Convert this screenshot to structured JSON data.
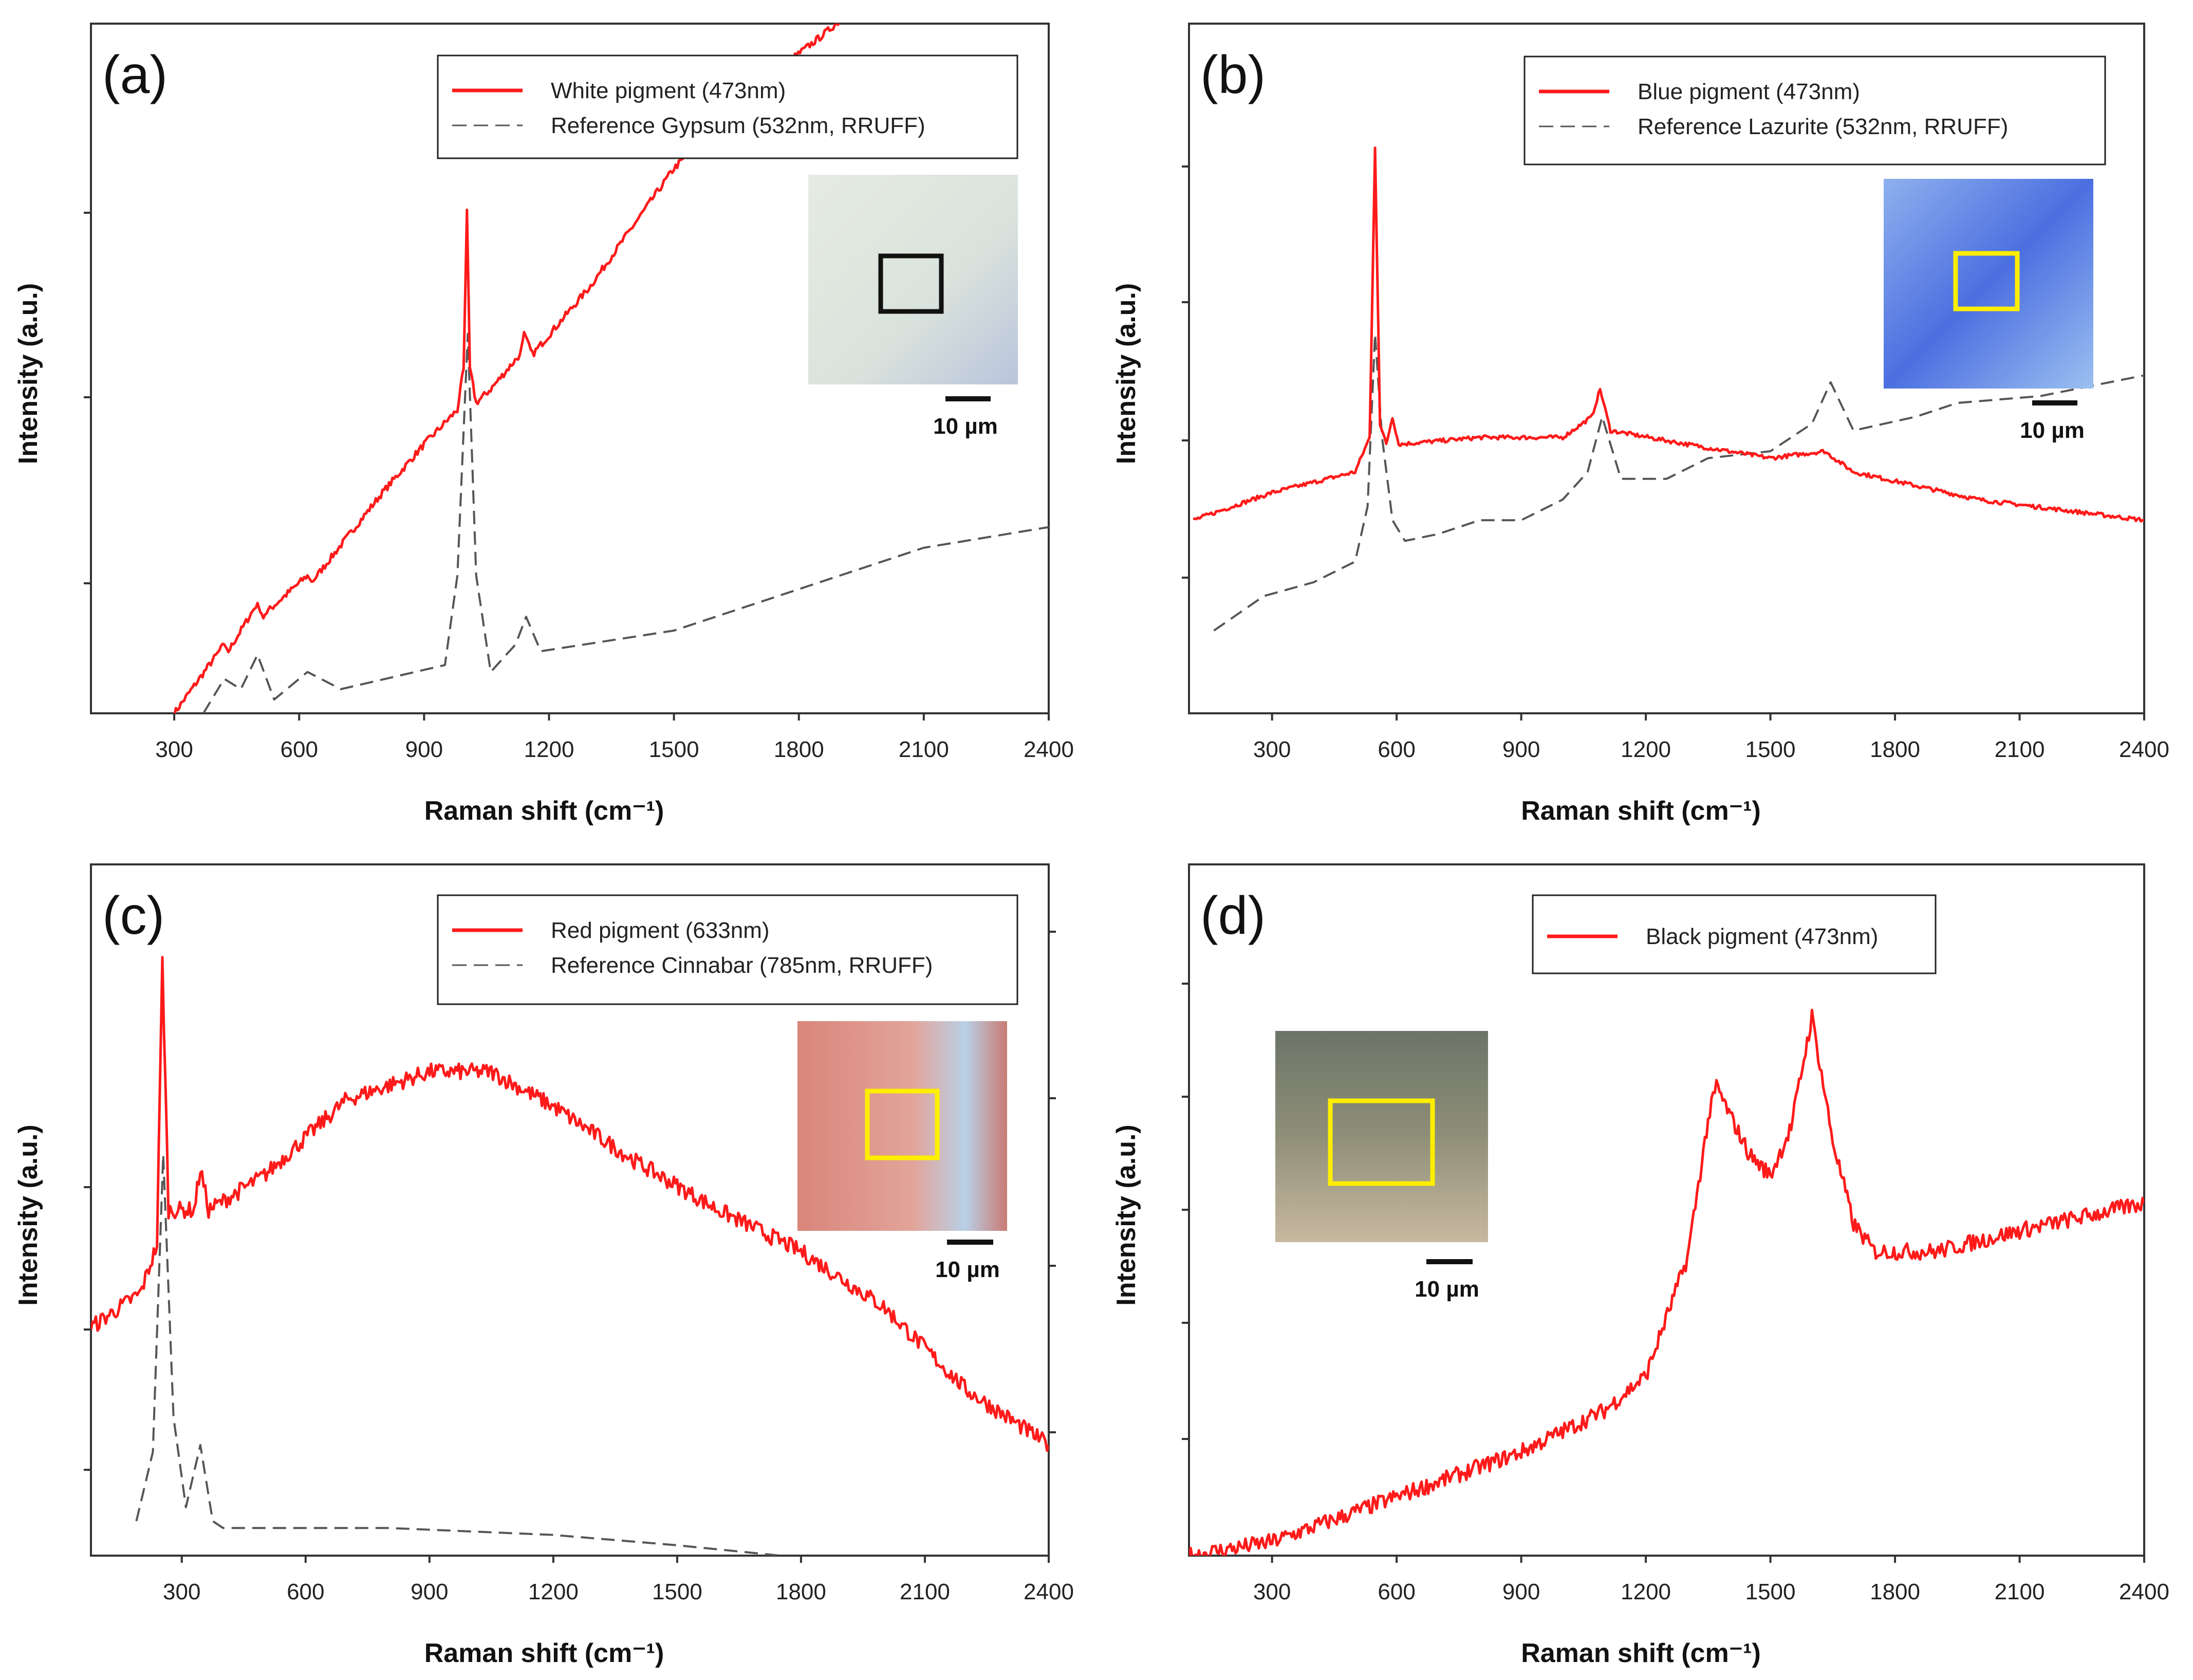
{
  "chart_data": [
    {
      "type": "line",
      "panel_label": "(a)",
      "xlabel": "Raman shift (cm⁻¹)",
      "ylabel": "Intensity (a.u.)",
      "xlim": [
        100,
        2400
      ],
      "ylim": [
        0,
        1
      ],
      "xticks": [
        300,
        600,
        900,
        1200,
        1500,
        1800,
        2100,
        2400
      ],
      "legend_position": "top-right",
      "inset": {
        "scale_label": "10 µm",
        "box_color": "#111111",
        "theme": "white"
      },
      "series": [
        {
          "name": "White pigment (473nm)",
          "color": "#ff1a1a",
          "style": "solid",
          "points": [
            [
              300,
              0
            ],
            [
              360,
              0.05
            ],
            [
              420,
              0.1
            ],
            [
              430,
              0.09
            ],
            [
              500,
              0.16
            ],
            [
              510,
              0.14
            ],
            [
              620,
              0.2
            ],
            [
              630,
              0.19
            ],
            [
              800,
              0.32
            ],
            [
              900,
              0.39
            ],
            [
              980,
              0.44
            ],
            [
              995,
              0.5
            ],
            [
              1003,
              0.73
            ],
            [
              1010,
              0.5
            ],
            [
              1025,
              0.45
            ],
            [
              1060,
              0.47
            ],
            [
              1130,
              0.52
            ],
            [
              1140,
              0.55
            ],
            [
              1160,
              0.52
            ],
            [
              1300,
              0.62
            ],
            [
              1500,
              0.79
            ],
            [
              1700,
              0.91
            ],
            [
              1850,
              0.98
            ],
            [
              1930,
              1.02
            ]
          ]
        },
        {
          "name": "Reference Gypsum (532nm, RRUFF)",
          "color": "#555555",
          "style": "dashed",
          "points": [
            [
              370,
              0
            ],
            [
              420,
              0.05
            ],
            [
              460,
              0.035
            ],
            [
              500,
              0.085
            ],
            [
              540,
              0.02
            ],
            [
              620,
              0.06
            ],
            [
              700,
              0.035
            ],
            [
              950,
              0.07
            ],
            [
              980,
              0.2
            ],
            [
              1005,
              0.55
            ],
            [
              1025,
              0.2
            ],
            [
              1060,
              0.06
            ],
            [
              1120,
              0.1
            ],
            [
              1145,
              0.14
            ],
            [
              1180,
              0.09
            ],
            [
              1500,
              0.12
            ],
            [
              1800,
              0.18
            ],
            [
              2100,
              0.24
            ],
            [
              2400,
              0.27
            ]
          ]
        }
      ]
    },
    {
      "type": "line",
      "panel_label": "(b)",
      "xlabel": "Raman shift (cm⁻¹)",
      "ylabel": "Intensity (a.u.)",
      "xlim": [
        100,
        2400
      ],
      "ylim": [
        0,
        1
      ],
      "xticks": [
        300,
        600,
        900,
        1200,
        1500,
        1800,
        2100,
        2400
      ],
      "legend_position": "top-right",
      "inset": {
        "scale_label": "10 µm",
        "box_color": "#ffee00",
        "theme": "blue"
      },
      "series": [
        {
          "name": "Blue pigment (473nm)",
          "color": "#ff1a1a",
          "style": "solid",
          "points": [
            [
              110,
              0.28
            ],
            [
              300,
              0.32
            ],
            [
              500,
              0.35
            ],
            [
              535,
              0.4
            ],
            [
              548,
              0.82
            ],
            [
              560,
              0.42
            ],
            [
              575,
              0.39
            ],
            [
              590,
              0.43
            ],
            [
              605,
              0.39
            ],
            [
              800,
              0.4
            ],
            [
              1000,
              0.4
            ],
            [
              1070,
              0.43
            ],
            [
              1090,
              0.47
            ],
            [
              1115,
              0.41
            ],
            [
              1300,
              0.39
            ],
            [
              1500,
              0.37
            ],
            [
              1630,
              0.38
            ],
            [
              1700,
              0.35
            ],
            [
              2000,
              0.31
            ],
            [
              2400,
              0.28
            ]
          ]
        },
        {
          "name": "Reference Lazurite (532nm, RRUFF)",
          "color": "#555555",
          "style": "dashed",
          "points": [
            [
              160,
              0.12
            ],
            [
              280,
              0.17
            ],
            [
              400,
              0.19
            ],
            [
              500,
              0.22
            ],
            [
              530,
              0.3
            ],
            [
              548,
              0.55
            ],
            [
              565,
              0.4
            ],
            [
              590,
              0.28
            ],
            [
              620,
              0.25
            ],
            [
              700,
              0.26
            ],
            [
              800,
              0.28
            ],
            [
              900,
              0.28
            ],
            [
              1000,
              0.31
            ],
            [
              1060,
              0.35
            ],
            [
              1095,
              0.43
            ],
            [
              1140,
              0.34
            ],
            [
              1250,
              0.34
            ],
            [
              1350,
              0.37
            ],
            [
              1500,
              0.38
            ],
            [
              1600,
              0.42
            ],
            [
              1645,
              0.48
            ],
            [
              1700,
              0.41
            ],
            [
              1850,
              0.43
            ],
            [
              1950,
              0.45
            ],
            [
              2150,
              0.46
            ],
            [
              2400,
              0.49
            ]
          ]
        }
      ]
    },
    {
      "type": "line",
      "panel_label": "(c)",
      "xlabel": "Raman shift (cm⁻¹)",
      "ylabel": "Intensity (a.u.)",
      "xlim": [
        80,
        2400
      ],
      "ylim": [
        0,
        1
      ],
      "xticks": [
        300,
        600,
        900,
        1200,
        1500,
        1800,
        2100,
        2400
      ],
      "legend_position": "top-right",
      "inset": {
        "scale_label": "10 µm",
        "box_color": "#ffee00",
        "theme": "red"
      },
      "series": [
        {
          "name": "Red pigment (633nm)",
          "color": "#ff1a1a",
          "style": "solid",
          "points": [
            [
              80,
              0.33
            ],
            [
              200,
              0.38
            ],
            [
              240,
              0.45
            ],
            [
              253,
              0.86
            ],
            [
              268,
              0.5
            ],
            [
              330,
              0.5
            ],
            [
              345,
              0.56
            ],
            [
              365,
              0.5
            ],
            [
              500,
              0.55
            ],
            [
              700,
              0.66
            ],
            [
              900,
              0.7
            ],
            [
              1050,
              0.7
            ],
            [
              1200,
              0.65
            ],
            [
              1400,
              0.57
            ],
            [
              1600,
              0.5
            ],
            [
              1800,
              0.44
            ],
            [
              2000,
              0.36
            ],
            [
              2200,
              0.24
            ],
            [
              2400,
              0.16
            ]
          ]
        },
        {
          "name": "Reference Cinnabar (785nm, RRUFF)",
          "color": "#555555",
          "style": "dashed",
          "points": [
            [
              190,
              0.05
            ],
            [
              230,
              0.15
            ],
            [
              255,
              0.58
            ],
            [
              280,
              0.2
            ],
            [
              310,
              0.07
            ],
            [
              345,
              0.16
            ],
            [
              375,
              0.05
            ],
            [
              400,
              0.04
            ],
            [
              800,
              0.04
            ],
            [
              1200,
              0.03
            ],
            [
              1500,
              0.015
            ],
            [
              1750,
              0
            ]
          ]
        }
      ]
    },
    {
      "type": "line",
      "panel_label": "(d)",
      "xlabel": "Raman shift (cm⁻¹)",
      "ylabel": "Intensity (a.u.)",
      "xlim": [
        100,
        2400
      ],
      "ylim": [
        0,
        1
      ],
      "xticks": [
        300,
        600,
        900,
        1200,
        1500,
        1800,
        2100,
        2400
      ],
      "legend_position": "top-center",
      "inset": {
        "scale_label": "10 µm",
        "box_color": "#ffee00",
        "theme": "black"
      },
      "series": [
        {
          "name": "Black pigment (473nm)",
          "color": "#ff1a1a",
          "style": "solid",
          "points": [
            [
              100,
              0
            ],
            [
              300,
              0.02
            ],
            [
              600,
              0.085
            ],
            [
              900,
              0.15
            ],
            [
              1100,
              0.21
            ],
            [
              1200,
              0.26
            ],
            [
              1300,
              0.43
            ],
            [
              1350,
              0.63
            ],
            [
              1370,
              0.68
            ],
            [
              1400,
              0.64
            ],
            [
              1450,
              0.58
            ],
            [
              1500,
              0.55
            ],
            [
              1550,
              0.62
            ],
            [
              1600,
              0.78
            ],
            [
              1650,
              0.6
            ],
            [
              1700,
              0.48
            ],
            [
              1750,
              0.44
            ],
            [
              1900,
              0.44
            ],
            [
              2100,
              0.47
            ],
            [
              2400,
              0.51
            ]
          ]
        }
      ]
    }
  ]
}
